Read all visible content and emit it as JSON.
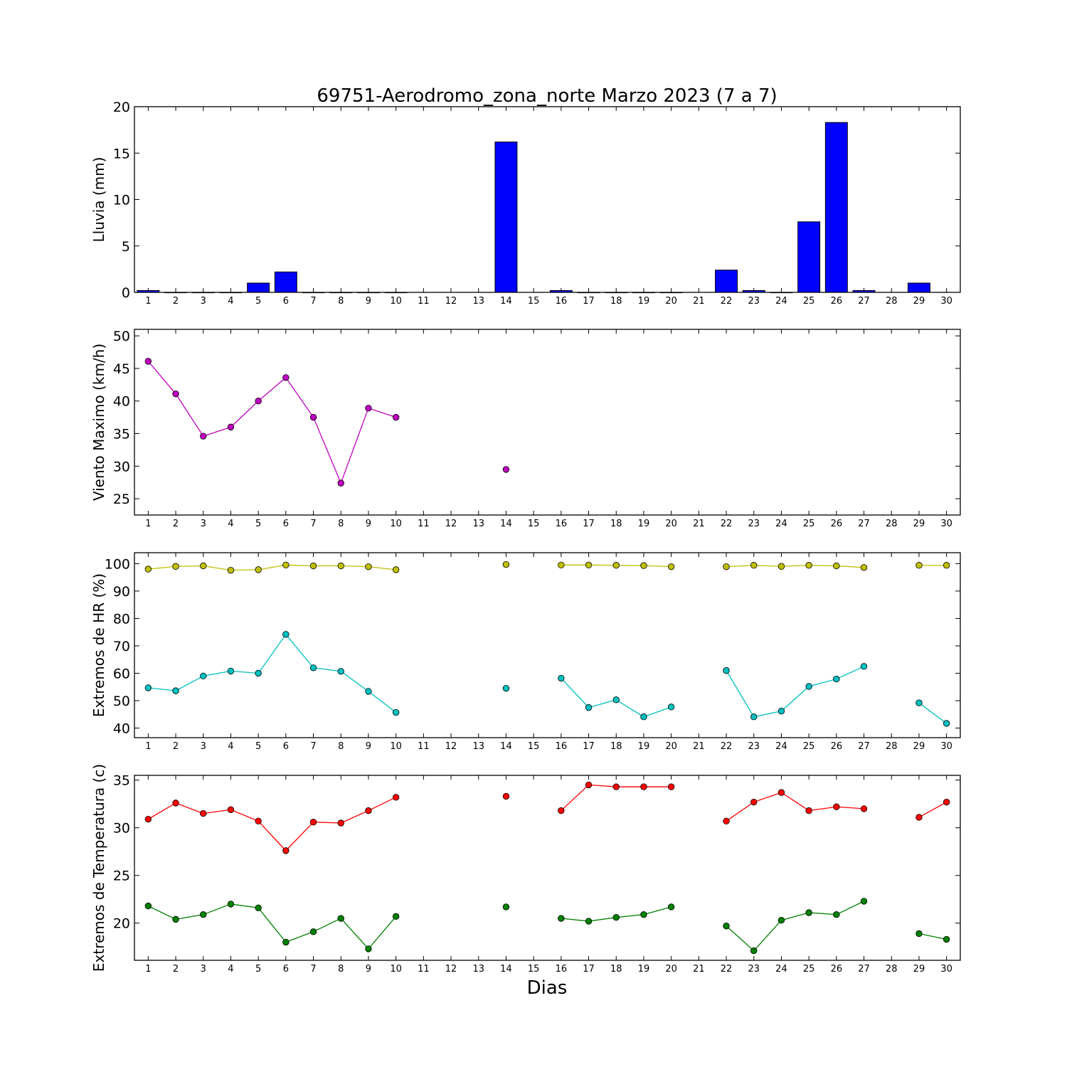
{
  "figure": {
    "title": "69751-Aerodromo_zona_norte Marzo 2023  (7 a 7)",
    "xlabel": "Dias"
  },
  "chart_data": [
    {
      "id": "lluvia",
      "type": "bar",
      "ylabel": "Lluvia (mm)",
      "ylim": [
        0,
        20
      ],
      "yticks": [
        0,
        5,
        10,
        15,
        20
      ],
      "xlim": [
        0.5,
        30.5
      ],
      "xticks": [
        1,
        2,
        3,
        4,
        5,
        6,
        7,
        8,
        9,
        10,
        11,
        12,
        13,
        14,
        15,
        16,
        17,
        18,
        19,
        20,
        21,
        22,
        23,
        24,
        25,
        26,
        27,
        28,
        29,
        30
      ],
      "bar_color": "#0000ff",
      "categories": [
        1,
        2,
        3,
        4,
        5,
        6,
        7,
        8,
        9,
        10,
        11,
        12,
        13,
        14,
        15,
        16,
        17,
        18,
        19,
        20,
        21,
        22,
        23,
        24,
        25,
        26,
        27,
        28,
        29,
        30
      ],
      "values": [
        0.2,
        0,
        0,
        0,
        1.0,
        2.2,
        0,
        0,
        0,
        0,
        null,
        null,
        null,
        16.2,
        null,
        0.2,
        0,
        0,
        0,
        0,
        null,
        2.4,
        0.2,
        0,
        7.6,
        18.3,
        0.2,
        null,
        1.0,
        null
      ]
    },
    {
      "id": "viento",
      "type": "line",
      "ylabel": "Viento Maximo (km/h)",
      "ylim": [
        22.5,
        51
      ],
      "yticks": [
        25,
        30,
        35,
        40,
        45,
        50
      ],
      "xlim": [
        0.5,
        30.5
      ],
      "xticks": [
        1,
        2,
        3,
        4,
        5,
        6,
        7,
        8,
        9,
        10,
        11,
        12,
        13,
        14,
        15,
        16,
        17,
        18,
        19,
        20,
        21,
        22,
        23,
        24,
        25,
        26,
        27,
        28,
        29,
        30
      ],
      "series": [
        {
          "color": "#bf00bf",
          "y": [
            46.1,
            41.1,
            34.6,
            36.0,
            40.0,
            43.6,
            37.5,
            27.4,
            38.9,
            37.5,
            null,
            null,
            null,
            29.5,
            null,
            null,
            null,
            null,
            null,
            null,
            null,
            null,
            null,
            null,
            null,
            null,
            null,
            null,
            null,
            null
          ]
        }
      ]
    },
    {
      "id": "hr",
      "type": "line",
      "ylabel": "Extremos de HR (%)",
      "ylim": [
        36.5,
        104
      ],
      "yticks": [
        40,
        50,
        60,
        70,
        80,
        90,
        100
      ],
      "xlim": [
        0.5,
        30.5
      ],
      "xticks": [
        1,
        2,
        3,
        4,
        5,
        6,
        7,
        8,
        9,
        10,
        11,
        12,
        13,
        14,
        15,
        16,
        17,
        18,
        19,
        20,
        21,
        22,
        23,
        24,
        25,
        26,
        27,
        28,
        29,
        30
      ],
      "series": [
        {
          "color": "#bfbf00",
          "y": [
            98,
            99,
            99.2,
            97.6,
            97.8,
            99.5,
            99.2,
            99.2,
            98.9,
            97.8,
            null,
            null,
            null,
            99.7,
            null,
            99.5,
            99.5,
            99.4,
            99.3,
            98.9,
            null,
            98.9,
            99.4,
            99.0,
            99.4,
            99.2,
            98.6,
            null,
            99.4,
            99.4
          ]
        },
        {
          "color": "#00bfbf",
          "y": [
            54.7,
            53.6,
            59,
            60.8,
            60,
            74.2,
            62,
            60.7,
            53.4,
            45.7,
            null,
            null,
            null,
            54.5,
            null,
            58.2,
            47.5,
            50.3,
            44.1,
            47.7,
            null,
            61,
            44.1,
            46.2,
            55.2,
            57.9,
            62.5,
            null,
            49.2,
            41.7
          ]
        }
      ]
    },
    {
      "id": "temp",
      "type": "line",
      "ylabel": "Extremos de Temperatura (c)",
      "ylim": [
        16.1,
        35.5
      ],
      "yticks": [
        20,
        25,
        30,
        35
      ],
      "xlim": [
        0.5,
        30.5
      ],
      "xticks": [
        1,
        2,
        3,
        4,
        5,
        6,
        7,
        8,
        9,
        10,
        11,
        12,
        13,
        14,
        15,
        16,
        17,
        18,
        19,
        20,
        21,
        22,
        23,
        24,
        25,
        26,
        27,
        28,
        29,
        30
      ],
      "series": [
        {
          "color": "#ff0000",
          "y": [
            30.9,
            32.6,
            31.5,
            31.9,
            30.7,
            27.6,
            30.6,
            30.5,
            31.8,
            33.2,
            null,
            null,
            null,
            33.3,
            null,
            31.8,
            34.5,
            34.3,
            34.3,
            34.3,
            null,
            30.7,
            32.7,
            33.7,
            31.8,
            32.2,
            32.0,
            null,
            31.1,
            32.7
          ]
        },
        {
          "color": "#008000",
          "y": [
            21.8,
            20.4,
            20.9,
            22.0,
            21.6,
            18.0,
            19.1,
            20.5,
            17.3,
            20.7,
            null,
            null,
            null,
            21.7,
            null,
            20.5,
            20.2,
            20.6,
            20.9,
            21.7,
            null,
            19.7,
            17.1,
            20.3,
            21.1,
            20.9,
            22.3,
            null,
            18.9,
            18.3
          ]
        }
      ]
    }
  ]
}
